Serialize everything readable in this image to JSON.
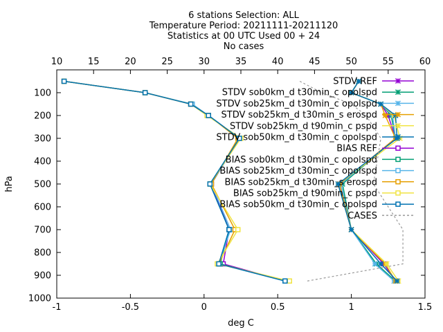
{
  "chart_data": {
    "type": "line",
    "title_lines": [
      "6 stations Selection: ALL",
      "Temperature  Period: 20211111-20211120",
      "Statistics at 00 UTC  Used 00 + 24",
      "No cases"
    ],
    "xlabel": "deg C",
    "ylabel": "hPa",
    "xlim": [
      -1,
      1.5
    ],
    "x2lim": [
      10,
      60
    ],
    "ylim": [
      1000,
      0
    ],
    "xticks": [
      "-1",
      "-0.5",
      "0",
      "0.5",
      "1",
      "1.5"
    ],
    "x2ticks": [
      "10",
      "15",
      "20",
      "25",
      "30",
      "35",
      "40",
      "45",
      "50",
      "55",
      "60"
    ],
    "yticks": [
      "100",
      "200",
      "300",
      "400",
      "500",
      "600",
      "700",
      "800",
      "900",
      "1000"
    ],
    "legend_position": "top-right",
    "levels": [
      50,
      100,
      150,
      200,
      300,
      500,
      700,
      850,
      925
    ],
    "series": [
      {
        "name": "STDV REF",
        "kind": "stdv",
        "marker": "x",
        "color": "#9400d3",
        "values": [
          1.05,
          1.0,
          1.2,
          1.25,
          1.3,
          0.92,
          1.0,
          1.22,
          1.3
        ]
      },
      {
        "name": "STDV sob0km_d t30min_c opolspd",
        "kind": "stdv",
        "marker": "x",
        "color": "#009e73",
        "values": [
          1.05,
          1.0,
          1.2,
          1.27,
          1.3,
          0.94,
          1.0,
          1.17,
          1.3
        ]
      },
      {
        "name": "STDV sob25km_d t30min_c opolspd",
        "kind": "stdv",
        "marker": "x",
        "color": "#56b4e9",
        "values": [
          1.05,
          1.0,
          1.2,
          1.28,
          1.3,
          0.93,
          1.0,
          1.16,
          1.29
        ]
      },
      {
        "name": "STDV sob25km_d t30min_s erospd",
        "kind": "stdv",
        "marker": "x",
        "color": "#e69f00",
        "values": [
          1.05,
          1.0,
          1.2,
          1.23,
          1.3,
          0.92,
          1.0,
          1.23,
          1.3
        ]
      },
      {
        "name": "STDV sob25km_d t90min_c pspd",
        "kind": "stdv",
        "marker": "x",
        "color": "#f0e442",
        "values": [
          1.05,
          1.0,
          1.2,
          1.29,
          1.33,
          0.91,
          1.0,
          1.24,
          1.32
        ]
      },
      {
        "name": "STDV sob50km_d t30min_c opolspd",
        "kind": "stdv",
        "marker": "x",
        "color": "#0072b2",
        "values": [
          1.05,
          1.0,
          1.2,
          1.3,
          1.31,
          0.91,
          1.0,
          1.2,
          1.31
        ]
      },
      {
        "name": "BIAS REF",
        "kind": "bias",
        "marker": "square",
        "color": "#9400d3",
        "values": [
          -0.95,
          -0.4,
          -0.09,
          0.03,
          0.24,
          0.05,
          0.17,
          0.13,
          0.55
        ]
      },
      {
        "name": "BIAS sob0km_d t30min_c opolspd",
        "kind": "bias",
        "marker": "square",
        "color": "#009e73",
        "values": [
          -0.95,
          -0.4,
          -0.09,
          0.03,
          0.24,
          0.04,
          0.17,
          0.11,
          0.55
        ]
      },
      {
        "name": "BIAS sob25km_d t30min_c opolspd",
        "kind": "bias",
        "marker": "square",
        "color": "#56b4e9",
        "values": [
          -0.95,
          -0.4,
          -0.08,
          0.03,
          0.24,
          0.05,
          0.18,
          0.1,
          0.55
        ]
      },
      {
        "name": "BIAS sob25km_d t30min_s erospd",
        "kind": "bias",
        "marker": "square",
        "color": "#e69f00",
        "values": [
          -0.95,
          -0.4,
          -0.09,
          0.03,
          0.23,
          0.05,
          0.21,
          0.1,
          0.57
        ]
      },
      {
        "name": "BIAS sob25km_d t90min_c pspd",
        "kind": "bias",
        "marker": "square",
        "color": "#f0e442",
        "values": [
          -0.95,
          -0.4,
          -0.09,
          0.02,
          0.25,
          0.04,
          0.23,
          0.09,
          0.58
        ]
      },
      {
        "name": "BIAS sob50km_d t30min_c opolspd",
        "kind": "bias",
        "marker": "square",
        "color": "#0072b2",
        "values": [
          -0.95,
          -0.4,
          -0.09,
          0.03,
          0.24,
          0.04,
          0.17,
          0.1,
          0.55
        ]
      },
      {
        "name": "CASES",
        "kind": "cases",
        "marker": "none",
        "color": "#999999",
        "axis": "top",
        "levels": [
          50,
          100,
          150,
          200,
          300,
          500,
          700,
          850,
          925
        ],
        "values": [
          43,
          46,
          50,
          52,
          54,
          53,
          57,
          57,
          44
        ]
      }
    ]
  }
}
